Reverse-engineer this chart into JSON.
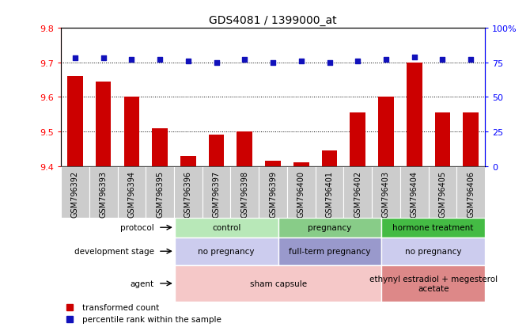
{
  "title": "GDS4081 / 1399000_at",
  "samples": [
    "GSM796392",
    "GSM796393",
    "GSM796394",
    "GSM796395",
    "GSM796396",
    "GSM796397",
    "GSM796398",
    "GSM796399",
    "GSM796400",
    "GSM796401",
    "GSM796402",
    "GSM796403",
    "GSM796404",
    "GSM796405",
    "GSM796406"
  ],
  "bar_values": [
    9.66,
    9.645,
    9.6,
    9.51,
    9.43,
    9.49,
    9.5,
    9.415,
    9.41,
    9.445,
    9.555,
    9.6,
    9.7,
    9.555,
    9.555
  ],
  "dot_values": [
    78,
    78,
    77,
    77,
    76,
    75,
    77,
    75,
    76,
    75,
    76,
    77,
    79,
    77,
    77
  ],
  "bar_color": "#cc0000",
  "dot_color": "#1111bb",
  "ylim_left": [
    9.4,
    9.8
  ],
  "ylim_right": [
    0,
    100
  ],
  "yticks_left": [
    9.4,
    9.5,
    9.6,
    9.7,
    9.8
  ],
  "yticks_right": [
    0,
    25,
    50,
    75,
    100
  ],
  "dotted_grid": [
    9.5,
    9.6,
    9.7
  ],
  "protocol_groups": [
    {
      "label": "control",
      "start": 0,
      "end": 5,
      "color": "#b8e8b8"
    },
    {
      "label": "pregnancy",
      "start": 5,
      "end": 10,
      "color": "#88cc88"
    },
    {
      "label": "hormone treatment",
      "start": 10,
      "end": 15,
      "color": "#44bb44"
    }
  ],
  "dev_stage_groups": [
    {
      "label": "no pregnancy",
      "start": 0,
      "end": 5,
      "color": "#ccccee"
    },
    {
      "label": "full-term pregnancy",
      "start": 5,
      "end": 10,
      "color": "#9999cc"
    },
    {
      "label": "no pregnancy",
      "start": 10,
      "end": 15,
      "color": "#ccccee"
    }
  ],
  "agent_groups": [
    {
      "label": "sham capsule",
      "start": 0,
      "end": 10,
      "color": "#f5c8c8"
    },
    {
      "label": "ethynyl estradiol + megesterol\nacetate",
      "start": 10,
      "end": 15,
      "color": "#dd8888"
    }
  ],
  "row_labels": [
    "protocol",
    "development stage",
    "agent"
  ],
  "legend": [
    {
      "label": "transformed count",
      "color": "#cc0000"
    },
    {
      "label": "percentile rank within the sample",
      "color": "#1111bb"
    }
  ]
}
